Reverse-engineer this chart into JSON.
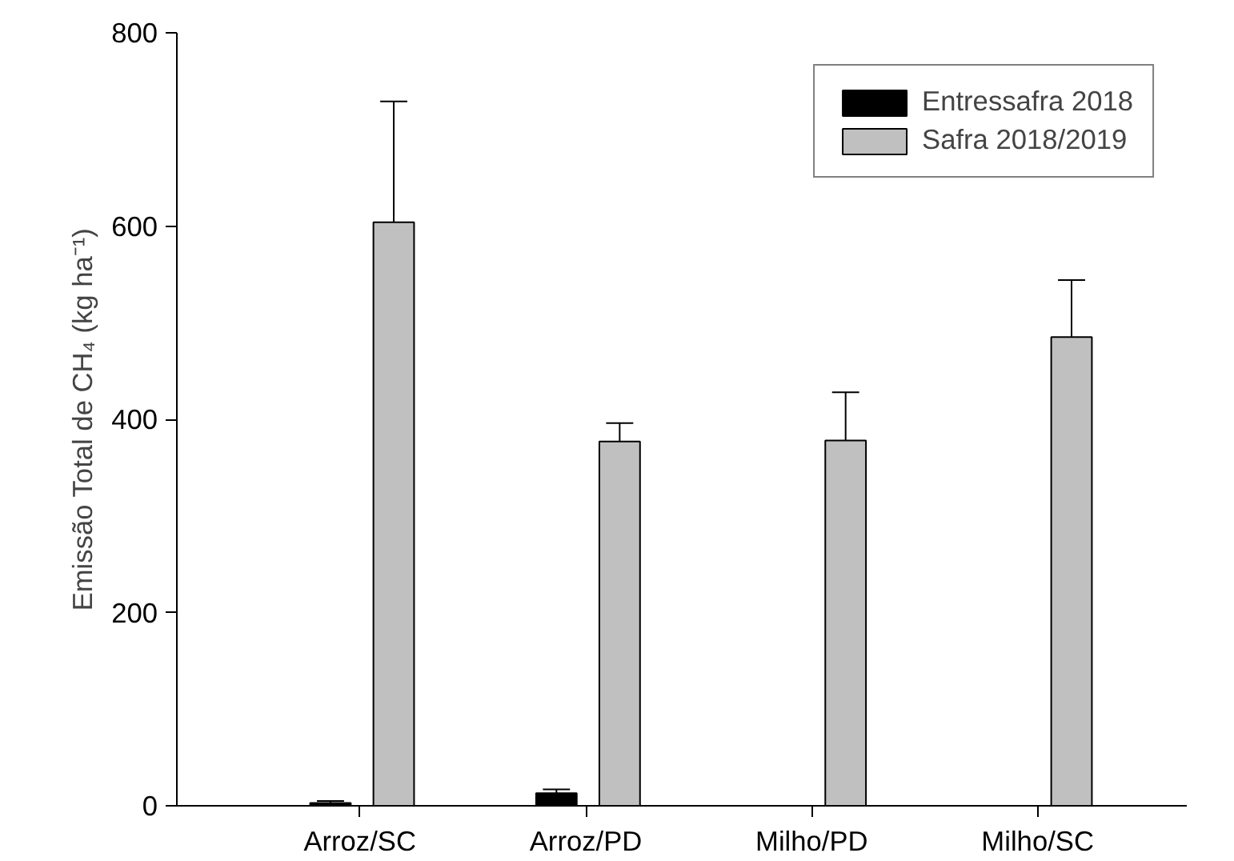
{
  "chart_data": {
    "type": "bar",
    "ylabel": "Emissão Total de CH₄ (kg ha⁻¹)",
    "categories": [
      "Arroz/SC",
      "Arroz/PD",
      "Milho/PD",
      "Milho/SC"
    ],
    "series": [
      {
        "name": "Entressafra 2018",
        "color": "#000000",
        "values": [
          3,
          13,
          null,
          null
        ],
        "errors": [
          [
            3,
            5
          ],
          [
            13,
            17
          ],
          null,
          null
        ]
      },
      {
        "name": "Safra 2018/2019",
        "color": "#c0c0c0",
        "values": [
          604,
          377,
          378,
          485
        ],
        "errors": [
          [
            604,
            729
          ],
          [
            377,
            396
          ],
          [
            378,
            428
          ],
          [
            485,
            544
          ]
        ]
      }
    ],
    "ylim": [
      0,
      800
    ],
    "yticks": [
      0,
      200,
      400,
      600,
      800
    ],
    "grid": false,
    "legend": "top right"
  }
}
